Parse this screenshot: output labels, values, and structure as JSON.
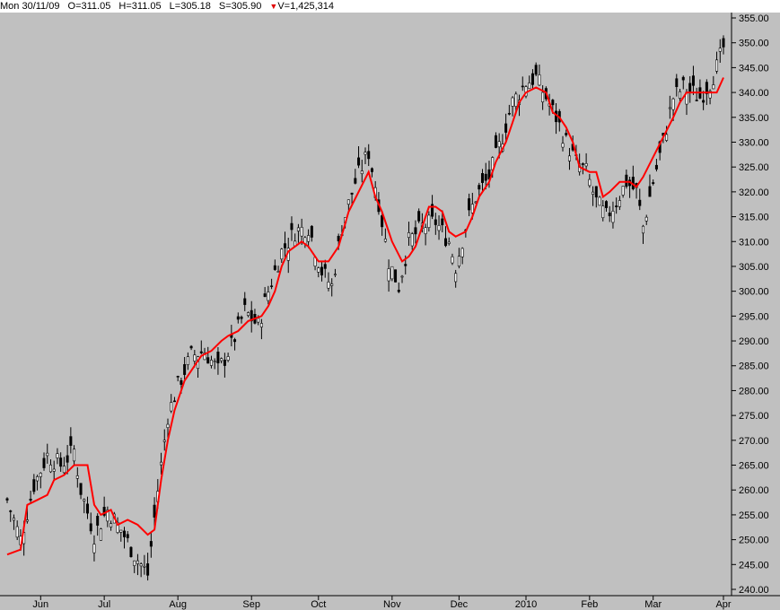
{
  "header": {
    "date": "Mon 30/11/09",
    "open": "O=311.05",
    "high": "H=311.05",
    "low": "L=305.18",
    "settle": "S=305.90",
    "volume": "V=1,425,314",
    "volume_icon": "down-triangle-icon"
  },
  "colors": {
    "background": "#c0c0c0",
    "plot_bg": "#c0c0c0",
    "candle": "#000000",
    "indicator": "#ff0000",
    "axis": "#000000"
  },
  "chart_data": {
    "type": "candlestick",
    "title": "",
    "ylim": [
      240,
      355
    ],
    "y_ticks": [
      "240.00",
      "245.00",
      "250.00",
      "255.00",
      "260.00",
      "265.00",
      "270.00",
      "275.00",
      "280.00",
      "285.00",
      "290.00",
      "295.00",
      "300.00",
      "305.00",
      "310.00",
      "315.00",
      "320.00",
      "325.00",
      "330.00",
      "335.00",
      "340.00",
      "345.00",
      "350.00",
      "355.00"
    ],
    "x_ticks": [
      "Jun",
      "Jul",
      "Aug",
      "Sep",
      "Oct",
      "Nov",
      "Dec",
      "2010",
      "Feb",
      "Mar",
      "Apr"
    ],
    "x_tick_index": [
      10,
      29,
      51,
      73,
      93,
      115,
      135,
      155,
      174,
      193,
      214
    ],
    "n_bars": 215,
    "close_series": [
      [
        0,
        258
      ],
      [
        4,
        250
      ],
      [
        8,
        261
      ],
      [
        12,
        267
      ],
      [
        16,
        265
      ],
      [
        20,
        268
      ],
      [
        22,
        260
      ],
      [
        26,
        251
      ],
      [
        30,
        256
      ],
      [
        34,
        252
      ],
      [
        38,
        247
      ],
      [
        42,
        243
      ],
      [
        45,
        260
      ],
      [
        48,
        275
      ],
      [
        51,
        281
      ],
      [
        55,
        287
      ],
      [
        59,
        288
      ],
      [
        63,
        284
      ],
      [
        67,
        289
      ],
      [
        71,
        296
      ],
      [
        75,
        293
      ],
      [
        78,
        300
      ],
      [
        82,
        308
      ],
      [
        86,
        312
      ],
      [
        90,
        313
      ],
      [
        94,
        304
      ],
      [
        97,
        301
      ],
      [
        100,
        313
      ],
      [
        104,
        322
      ],
      [
        108,
        328
      ],
      [
        111,
        318
      ],
      [
        114,
        306
      ],
      [
        117,
        301
      ],
      [
        120,
        310
      ],
      [
        124,
        313
      ],
      [
        128,
        314
      ],
      [
        132,
        310
      ],
      [
        134,
        305
      ],
      [
        137,
        313
      ],
      [
        140,
        319
      ],
      [
        144,
        323
      ],
      [
        147,
        329
      ],
      [
        151,
        338
      ],
      [
        155,
        342
      ],
      [
        158,
        343
      ],
      [
        161,
        339
      ],
      [
        164,
        335
      ],
      [
        167,
        330
      ],
      [
        170,
        326
      ],
      [
        173,
        324
      ],
      [
        176,
        318
      ],
      [
        179,
        315
      ],
      [
        182,
        318
      ],
      [
        185,
        322
      ],
      [
        188,
        320
      ],
      [
        190,
        313
      ],
      [
        193,
        322
      ],
      [
        196,
        330
      ],
      [
        199,
        339
      ],
      [
        202,
        341
      ],
      [
        205,
        340
      ],
      [
        207,
        339
      ],
      [
        210,
        342
      ],
      [
        212,
        345
      ],
      [
        214,
        349
      ]
    ],
    "indicator_series": {
      "name": "",
      "points": [
        [
          0,
          247
        ],
        [
          4,
          248
        ],
        [
          6,
          257
        ],
        [
          9,
          258
        ],
        [
          12,
          259
        ],
        [
          14,
          262
        ],
        [
          17,
          263
        ],
        [
          20,
          265
        ],
        [
          24,
          265
        ],
        [
          26,
          257
        ],
        [
          28,
          255
        ],
        [
          31,
          256
        ],
        [
          33,
          253
        ],
        [
          36,
          254
        ],
        [
          39,
          253
        ],
        [
          42,
          251
        ],
        [
          44,
          252
        ],
        [
          46,
          262
        ],
        [
          48,
          270
        ],
        [
          50,
          276
        ],
        [
          53,
          282
        ],
        [
          56,
          285
        ],
        [
          58,
          287
        ],
        [
          61,
          288
        ],
        [
          64,
          290
        ],
        [
          66,
          291
        ],
        [
          69,
          292
        ],
        [
          72,
          294
        ],
        [
          76,
          295
        ],
        [
          78,
          297
        ],
        [
          80,
          300
        ],
        [
          82,
          305
        ],
        [
          84,
          308
        ],
        [
          86,
          309
        ],
        [
          88,
          310
        ],
        [
          90,
          309
        ],
        [
          93,
          306
        ],
        [
          96,
          306
        ],
        [
          99,
          309
        ],
        [
          102,
          316
        ],
        [
          105,
          320
        ],
        [
          108,
          324
        ],
        [
          110,
          319
        ],
        [
          112,
          316
        ],
        [
          115,
          310
        ],
        [
          118,
          306
        ],
        [
          120,
          307
        ],
        [
          122,
          309
        ],
        [
          124,
          313
        ],
        [
          126,
          317
        ],
        [
          128,
          317
        ],
        [
          130,
          316
        ],
        [
          132,
          312
        ],
        [
          134,
          311
        ],
        [
          137,
          312
        ],
        [
          139,
          315
        ],
        [
          141,
          319
        ],
        [
          144,
          322
        ],
        [
          146,
          326
        ],
        [
          149,
          330
        ],
        [
          151,
          334
        ],
        [
          153,
          338
        ],
        [
          155,
          340
        ],
        [
          158,
          341
        ],
        [
          161,
          340
        ],
        [
          163,
          336
        ],
        [
          165,
          335
        ],
        [
          167,
          333
        ],
        [
          169,
          330
        ],
        [
          171,
          325
        ],
        [
          174,
          324
        ],
        [
          176,
          324
        ],
        [
          178,
          319
        ],
        [
          180,
          320
        ],
        [
          183,
          322
        ],
        [
          186,
          322
        ],
        [
          188,
          321
        ],
        [
          190,
          323
        ],
        [
          193,
          327
        ],
        [
          196,
          331
        ],
        [
          199,
          335
        ],
        [
          201,
          338
        ],
        [
          203,
          340
        ],
        [
          206,
          340
        ],
        [
          210,
          340
        ],
        [
          212,
          340
        ],
        [
          214,
          343
        ]
      ]
    }
  }
}
